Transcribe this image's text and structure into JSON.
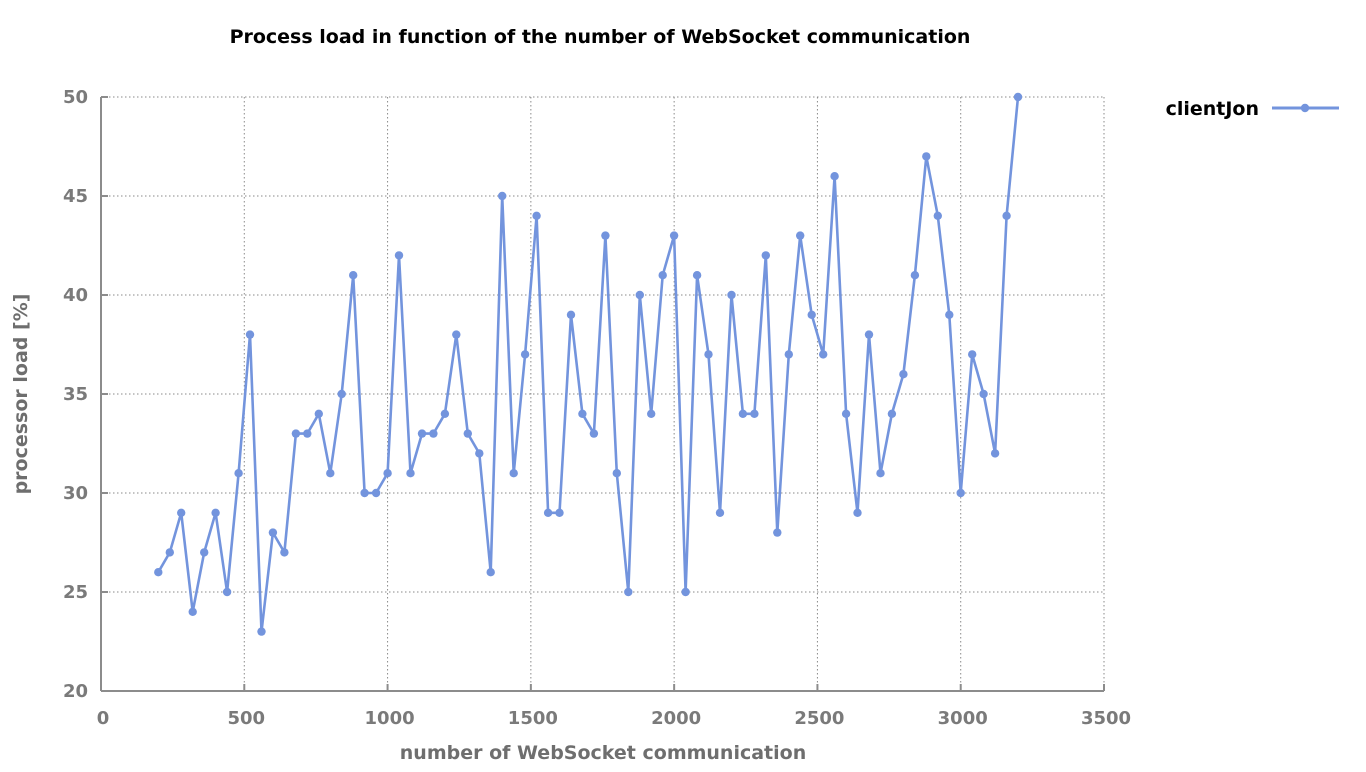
{
  "chart_data": {
    "type": "line",
    "title": "Process load in function of the number of WebSocket communication",
    "xlabel": "number of WebSocket communication",
    "ylabel": "processor load [%]",
    "xlim": [
      0,
      3500
    ],
    "ylim": [
      20,
      50
    ],
    "x_ticks": [
      "0",
      "500",
      "1000",
      "1500",
      "2000",
      "2500",
      "3000",
      "3500"
    ],
    "y_ticks": [
      "20",
      "25",
      "30",
      "35",
      "40",
      "45",
      "50"
    ],
    "x_tick_values": [
      0,
      500,
      1000,
      1500,
      2000,
      2500,
      3000,
      3500
    ],
    "y_tick_values": [
      20,
      25,
      30,
      35,
      40,
      45,
      50
    ],
    "grid": true,
    "legend_position": "top-right",
    "series": [
      {
        "name": "clientJon",
        "color": "#7394dd",
        "x": [
          200,
          240,
          280,
          320,
          360,
          400,
          440,
          480,
          520,
          560,
          600,
          640,
          680,
          720,
          760,
          800,
          840,
          880,
          920,
          960,
          1000,
          1040,
          1080,
          1120,
          1160,
          1200,
          1240,
          1280,
          1320,
          1360,
          1400,
          1440,
          1480,
          1520,
          1560,
          1600,
          1640,
          1680,
          1720,
          1760,
          1800,
          1840,
          1880,
          1920,
          1960,
          2000,
          2040,
          2080,
          2120,
          2160,
          2200,
          2240,
          2280,
          2320,
          2360,
          2400,
          2440,
          2480,
          2520,
          2560,
          2600,
          2640,
          2680,
          2720,
          2760,
          2800,
          2840,
          2880,
          2920,
          2960,
          3000,
          3040,
          3080,
          3120,
          3160,
          3200
        ],
        "y": [
          26,
          27,
          29,
          24,
          27,
          29,
          25,
          31,
          38,
          23,
          28,
          27,
          33,
          33,
          34,
          31,
          35,
          41,
          30,
          30,
          31,
          42,
          31,
          33,
          33,
          34,
          38,
          33,
          32,
          26,
          45,
          31,
          37,
          44,
          29,
          29,
          39,
          34,
          33,
          43,
          31,
          25,
          40,
          34,
          41,
          43,
          25,
          41,
          37,
          29,
          40,
          34,
          34,
          42,
          28,
          37,
          43,
          39,
          37,
          46,
          34,
          29,
          38,
          31,
          34,
          36,
          41,
          47,
          44,
          39,
          30,
          37,
          35,
          32,
          44,
          50
        ]
      }
    ]
  }
}
